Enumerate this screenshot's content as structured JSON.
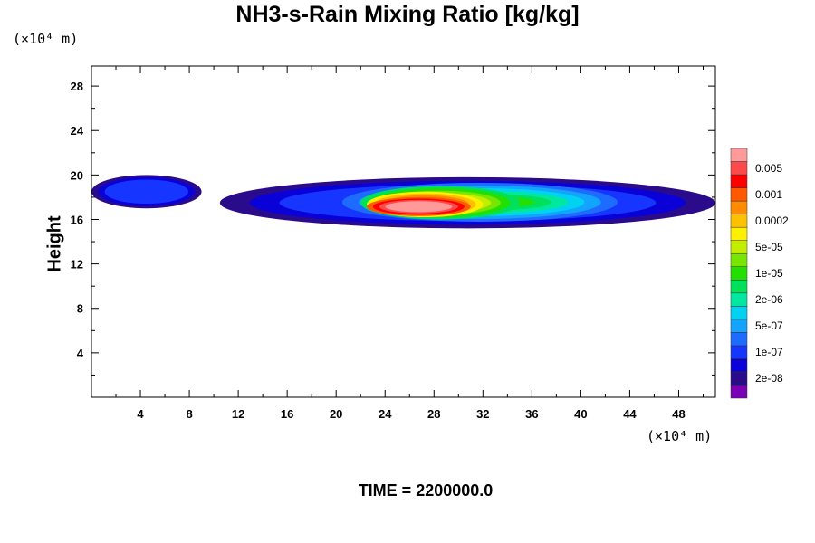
{
  "chart_data": {
    "type": "heatmap",
    "title": "NH3-s-Rain Mixing Ratio [kg/kg]",
    "xlabel": "",
    "ylabel": "Height",
    "x_unit": "(×10⁴ m)",
    "y_unit": "(×10⁴ m)",
    "xlim": [
      0,
      51
    ],
    "ylim": [
      0,
      29.8
    ],
    "x_ticks": [
      4,
      8,
      12,
      16,
      20,
      24,
      28,
      32,
      36,
      40,
      44,
      48
    ],
    "y_ticks": [
      4,
      8,
      12,
      16,
      20,
      24,
      28
    ],
    "colorbar": {
      "levels": [
        {
          "label": "",
          "color": "#7a00b4"
        },
        {
          "label": "2e-08",
          "color": "#2a0b8c"
        },
        {
          "label": "",
          "color": "#0a00d8"
        },
        {
          "label": "1e-07",
          "color": "#1636ff"
        },
        {
          "label": "",
          "color": "#1e6cff"
        },
        {
          "label": "5e-07",
          "color": "#12a4ff"
        },
        {
          "label": "",
          "color": "#00d2f2"
        },
        {
          "label": "2e-06",
          "color": "#00e8a0"
        },
        {
          "label": "",
          "color": "#00e05a"
        },
        {
          "label": "1e-05",
          "color": "#24e000"
        },
        {
          "label": "",
          "color": "#78e600"
        },
        {
          "label": "5e-05",
          "color": "#c4ee00"
        },
        {
          "label": "",
          "color": "#fff000"
        },
        {
          "label": "0.0002",
          "color": "#ffc000"
        },
        {
          "label": "",
          "color": "#ff8c00"
        },
        {
          "label": "0.001",
          "color": "#ff5a00"
        },
        {
          "label": "",
          "color": "#ff0000"
        },
        {
          "label": "0.005",
          "color": "#ff4a4a"
        },
        {
          "label": "",
          "color": "#ff9a9a"
        }
      ]
    },
    "regions": [
      {
        "level": 1,
        "x": [
          0.0,
          9.0
        ],
        "y": [
          17.0,
          20.0
        ]
      },
      {
        "level": 1,
        "x": [
          10.5,
          51.0
        ],
        "y": [
          15.2,
          19.8
        ]
      },
      {
        "level": 4,
        "x": [
          20.5,
          43.0
        ],
        "y": [
          15.8,
          19.3
        ]
      },
      {
        "level": 8,
        "x": [
          22.0,
          35.0
        ],
        "y": [
          16.0,
          19.0
        ]
      },
      {
        "level": 12,
        "x": [
          22.5,
          32.0
        ],
        "y": [
          16.2,
          18.5
        ]
      },
      {
        "level": 15,
        "x": [
          22.5,
          31.0
        ],
        "y": [
          16.3,
          18.0
        ]
      }
    ],
    "time_label": "TIME = 2200000.0"
  }
}
